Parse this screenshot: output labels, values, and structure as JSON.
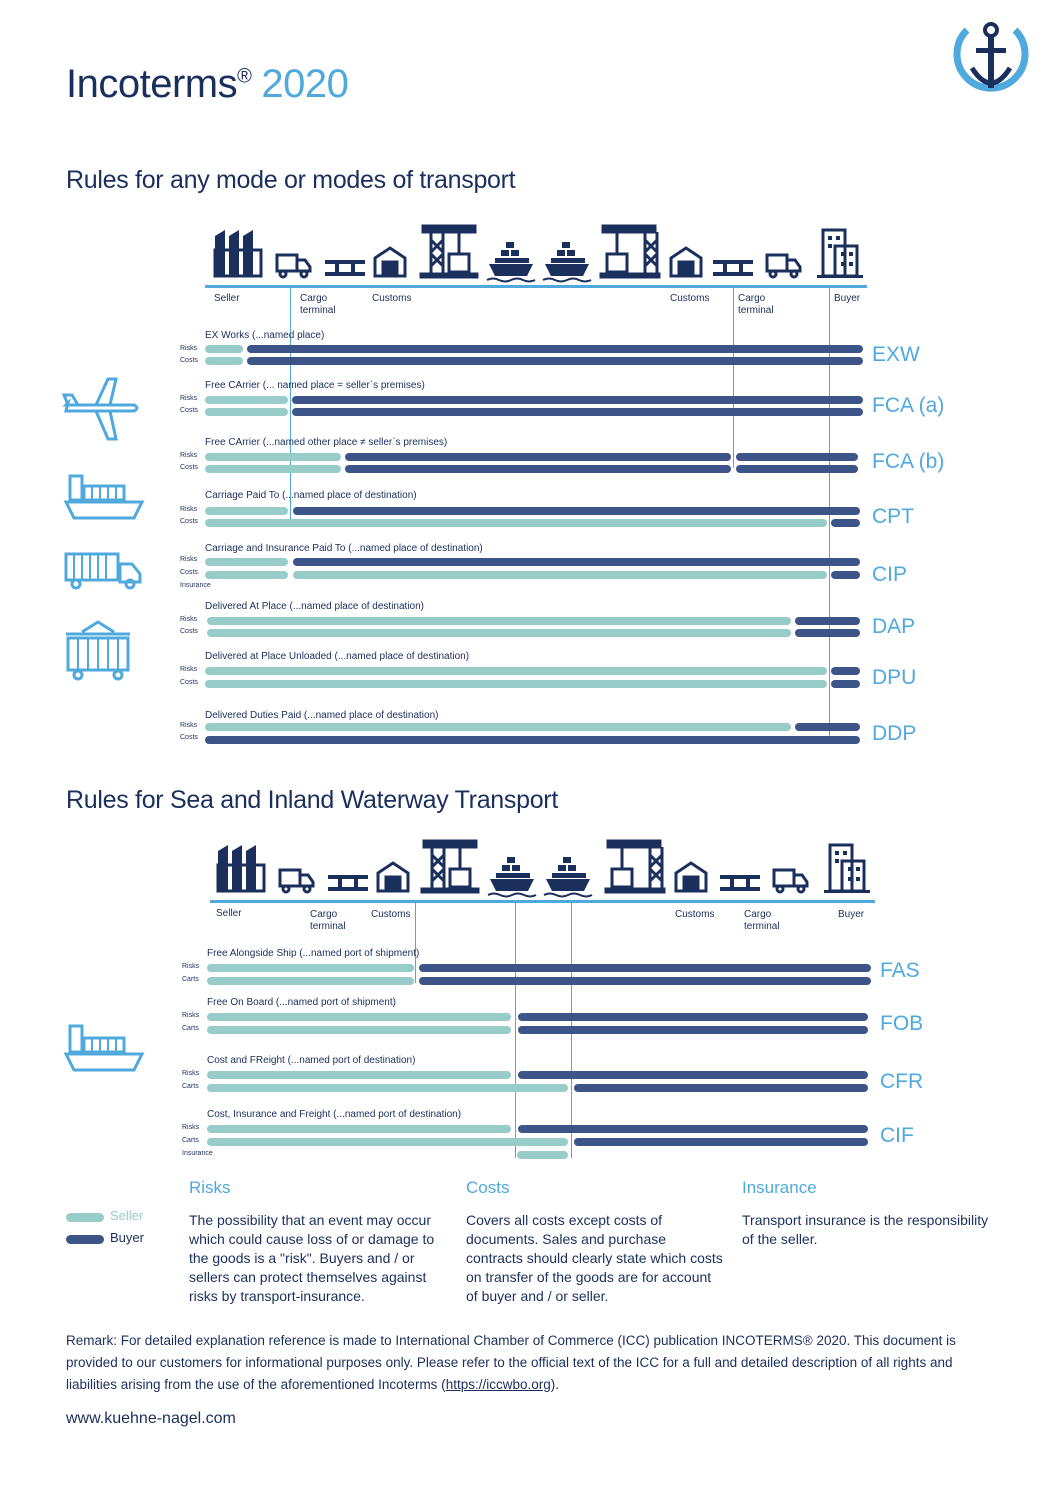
{
  "title": {
    "main": "Incoterms",
    "reg": "®",
    "year": "2020"
  },
  "section1": {
    "heading": "Rules for any mode or modes of transport",
    "stages": {
      "seller": "Seller",
      "cargo_terminal_1": "Cargo terminal",
      "customs_1": "Customs",
      "customs_2": "Customs",
      "cargo_terminal_2": "Cargo terminal",
      "buyer": "Buyer"
    },
    "rows": [
      {
        "name": "EX Works (...named place)",
        "code": "EXW"
      },
      {
        "name": "Free CArrier (... named place = seller`s premises)",
        "code": "FCA (a)"
      },
      {
        "name": "Free CArrier (...named other place ≠ seller`s premises)",
        "code": "FCA (b)"
      },
      {
        "name": "Carriage Paid To (...named place of destination)",
        "code": "CPT"
      },
      {
        "name": "Carriage and Insurance Paid To (...named place of destination)",
        "code": "CIP"
      },
      {
        "name": "Delivered At Place (...named place of destination)",
        "code": "DAP"
      },
      {
        "name": "Delivered at Place Unloaded (...named place of destination)",
        "code": "DPU"
      },
      {
        "name": "Delivered Duties Paid (...named place of destination)",
        "code": "DDP"
      }
    ]
  },
  "section2": {
    "heading": "Rules for Sea and Inland Waterway Transport",
    "stages": {
      "seller": "Seller",
      "cargo_terminal_1": "Cargo terminal",
      "customs_1": "Customs",
      "customs_2": "Customs",
      "cargo_terminal_2": "Cargo terminal",
      "buyer": "Buyer"
    },
    "rows": [
      {
        "name": "Free Alongside Ship (...named port of shipment)",
        "code": "FAS"
      },
      {
        "name": "Free On Board (...named port of shipment)",
        "code": "FOB"
      },
      {
        "name": "Cost and FReight (...named port of destination)",
        "code": "CFR"
      },
      {
        "name": "Cost, Insurance and Freight (...named port of destination)",
        "code": "CIF"
      }
    ]
  },
  "labels": {
    "risks": "Risks",
    "costs": "Costs",
    "insurance": "Insurance",
    "costs_alt": "Carts"
  },
  "legend": {
    "seller": "Seller",
    "buyer": "Buyer"
  },
  "explanations": {
    "risks": {
      "heading": "Risks",
      "body": "The possibility that an event may occur which could cause loss of or damage to the goods is a \"risk\". Buyers and / or sellers can protect themselves against risks by transport-insurance."
    },
    "costs": {
      "heading": "Costs",
      "body": "Covers all costs except costs of documents. Sales and purchase contracts should clearly state which costs on transfer of the goods are for account of buyer and / or seller."
    },
    "insurance": {
      "heading": "Insurance",
      "body": "Transport insurance is the responsibility of the seller."
    }
  },
  "remark": {
    "text": "Remark: For detailed explanation reference is made to International Chamber of Commerce (ICC) publication INCOTERMS® 2020. This document is provided to our customers for informational purposes only. Please refer to the official text of the ICC for a full and detailed description of all rights and liabilities arising from the use of the aforementioned Incoterms (",
    "link": "https://iccwbo.org",
    "end": ")."
  },
  "website": "www.kuehne-nagel.com",
  "colors": {
    "seller": "#98ccc8",
    "buyer": "#3d5488",
    "accent": "#4fa9dc",
    "navy": "#1b2f5c"
  }
}
